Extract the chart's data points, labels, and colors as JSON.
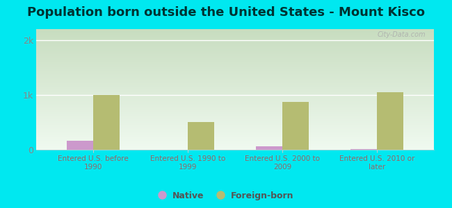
{
  "title": "Population born outside the United States - Mount Kisco",
  "categories": [
    "Entered U.S. before\n1990",
    "Entered U.S. 1990 to\n1999",
    "Entered U.S. 2000 to\n2009",
    "Entered U.S. 2010 or\nlater"
  ],
  "native_values": [
    170,
    0,
    60,
    10
  ],
  "foreign_values": [
    1000,
    500,
    870,
    1050
  ],
  "native_color": "#cc99cc",
  "foreign_color": "#b5bc72",
  "background_outer": "#00e8f0",
  "plot_bg_color": "#e8f5e9",
  "ylim": [
    0,
    2200
  ],
  "yticks": [
    0,
    1000,
    2000
  ],
  "ytick_labels": [
    "0",
    "1k",
    "2k"
  ],
  "title_fontsize": 13,
  "title_color": "#003333",
  "bar_width": 0.28,
  "watermark": "City-Data.com",
  "label_color": "#996666",
  "ytick_color": "#888888",
  "legend_native_label": "Native",
  "legend_foreign_label": "Foreign-born",
  "legend_text_color": "#555555"
}
